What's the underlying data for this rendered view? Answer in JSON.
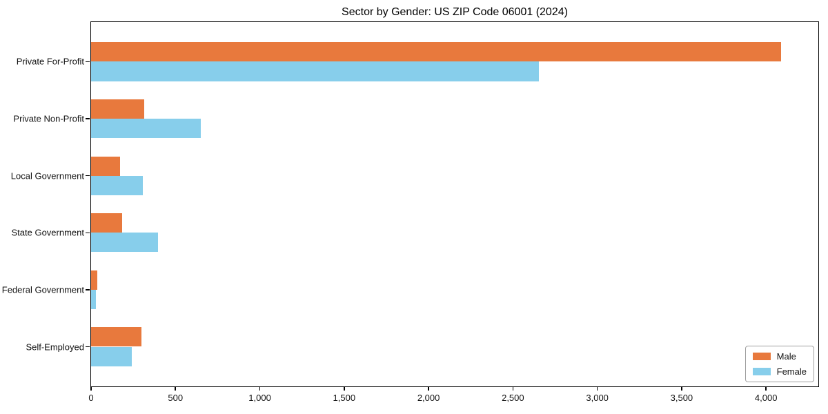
{
  "title": "Sector by Gender: US ZIP Code 06001 (2024)",
  "legend": {
    "position": "lower right",
    "items": [
      {
        "label": "Male",
        "color": "#e8793d"
      },
      {
        "label": "Female",
        "color": "#87ceeb"
      }
    ]
  },
  "chart_data": {
    "type": "bar",
    "orientation": "horizontal",
    "title": "Sector by Gender: US ZIP Code 06001 (2024)",
    "categories": [
      "Private For-Profit",
      "Private Non-Profit",
      "Local Government",
      "State Government",
      "Federal Government",
      "Self-Employed"
    ],
    "series": [
      {
        "name": "Male",
        "color": "#e8793d",
        "values": [
          4090,
          315,
          170,
          185,
          35,
          297
        ]
      },
      {
        "name": "Female",
        "color": "#87ceeb",
        "values": [
          2655,
          650,
          305,
          396,
          27,
          242
        ]
      }
    ],
    "xlabel": "",
    "ylabel": "",
    "xlim": [
      0,
      4310
    ],
    "xticks": [
      0,
      500,
      1000,
      1500,
      2000,
      2500,
      3000,
      3500,
      4000
    ],
    "xtick_labels": [
      "0",
      "500",
      "1,000",
      "1,500",
      "2,000",
      "2,500",
      "3,000",
      "3,500",
      "4,000"
    ],
    "grid": false,
    "legend_position": "lower right"
  }
}
